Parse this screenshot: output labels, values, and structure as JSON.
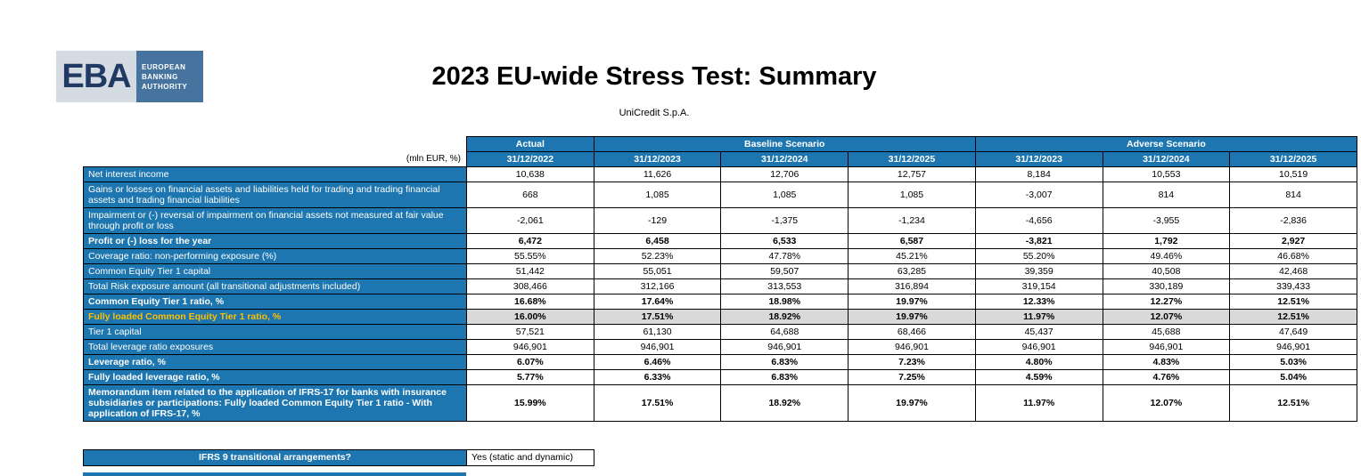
{
  "logo": {
    "text": "EBA",
    "caption": [
      "EUROPEAN",
      "BANKING",
      "AUTHORITY"
    ]
  },
  "header": {
    "title": "2023 EU-wide Stress Test: Summary",
    "subtitle": "UniCredit S.p.A."
  },
  "table": {
    "unit_label": "(mln EUR, %)",
    "col_groups": [
      {
        "label": "Actual",
        "span": 1
      },
      {
        "label": "Baseline Scenario",
        "span": 3
      },
      {
        "label": "Adverse Scenario",
        "span": 3
      }
    ],
    "col_headers": [
      "31/12/2022",
      "31/12/2023",
      "31/12/2024",
      "31/12/2025",
      "31/12/2023",
      "31/12/2024",
      "31/12/2025"
    ],
    "rows": [
      {
        "label": "Net interest income",
        "bold": false,
        "values": [
          "10,638",
          "11,626",
          "12,706",
          "12,757",
          "8,184",
          "10,553",
          "10,519"
        ]
      },
      {
        "label": "Gains or losses on financial assets and liabilities held for trading and trading financial assets and trading financial liabilities",
        "bold": false,
        "values": [
          "668",
          "1,085",
          "1,085",
          "1,085",
          "-3,007",
          "814",
          "814"
        ]
      },
      {
        "label": "Impairment or (-) reversal of impairment on financial assets not measured at fair value through profit or loss",
        "bold": false,
        "values": [
          "-2,061",
          "-129",
          "-1,375",
          "-1,234",
          "-4,656",
          "-3,955",
          "-2,836"
        ]
      },
      {
        "label": "Profit or (-) loss for the year",
        "bold": true,
        "values": [
          "6,472",
          "6,458",
          "6,533",
          "6,587",
          "-3,821",
          "1,792",
          "2,927"
        ]
      },
      {
        "label": "Coverage ratio: non-performing exposure (%)",
        "bold": false,
        "values": [
          "55.55%",
          "52.23%",
          "47.78%",
          "45.21%",
          "55.20%",
          "49.46%",
          "46.68%"
        ]
      },
      {
        "label": "Common Equity Tier 1 capital",
        "bold": false,
        "values": [
          "51,442",
          "55,051",
          "59,507",
          "63,285",
          "39,359",
          "40,508",
          "42,468"
        ]
      },
      {
        "label": "Total Risk exposure amount (all transitional adjustments included)",
        "bold": false,
        "values": [
          "308,466",
          "312,166",
          "313,553",
          "316,894",
          "319,154",
          "330,189",
          "339,433"
        ]
      },
      {
        "label": "Common Equity Tier 1 ratio, %",
        "bold": true,
        "values": [
          "16.68%",
          "17.64%",
          "18.98%",
          "19.97%",
          "12.33%",
          "12.27%",
          "12.51%"
        ]
      },
      {
        "label": "Fully loaded Common Equity Tier 1 ratio, %",
        "bold": true,
        "gold": true,
        "highlight": true,
        "values": [
          "16.00%",
          "17.51%",
          "18.92%",
          "19.97%",
          "11.97%",
          "12.07%",
          "12.51%"
        ]
      },
      {
        "label": "Tier 1 capital",
        "bold": false,
        "values": [
          "57,521",
          "61,130",
          "64,688",
          "68,466",
          "45,437",
          "45,688",
          "47,649"
        ]
      },
      {
        "label": "Total leverage ratio exposures",
        "bold": false,
        "values": [
          "946,901",
          "946,901",
          "946,901",
          "946,901",
          "946,901",
          "946,901",
          "946,901"
        ]
      },
      {
        "label": "Leverage ratio, %",
        "bold": true,
        "values": [
          "6.07%",
          "6.46%",
          "6.83%",
          "7.23%",
          "4.80%",
          "4.83%",
          "5.03%"
        ]
      },
      {
        "label": "Fully loaded leverage ratio, %",
        "bold": true,
        "values": [
          "5.77%",
          "6.33%",
          "6.83%",
          "7.25%",
          "4.59%",
          "4.76%",
          "5.04%"
        ]
      },
      {
        "label": "Memorandum item related to the application of IFRS-17 for banks with insurance subsidiaries or participations: Fully loaded Common Equity Tier 1 ratio - With application of IFRS-17, %",
        "bold": true,
        "values": [
          "15.99%",
          "17.51%",
          "18.92%",
          "19.97%",
          "11.97%",
          "12.07%",
          "12.51%"
        ]
      }
    ]
  },
  "ifrs9": {
    "question": "IFRS 9 transitional arrangements?",
    "answer": "Yes (static and dynamic)"
  },
  "colors": {
    "header_blue": "#1D76AF",
    "accent_gold": "#FFC000",
    "highlight_gray": "#D9D9D9",
    "logo_navy": "#1F3A63",
    "logo_panel_blue": "#46749E",
    "logo_bg_gray": "#D4DBE2"
  }
}
